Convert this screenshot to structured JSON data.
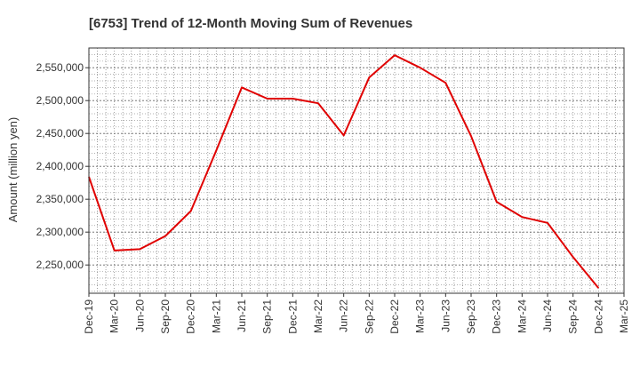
{
  "chart_data": {
    "type": "line",
    "title": "[6753]  Trend of 12-Month Moving Sum of Revenues",
    "xlabel": "",
    "ylabel": "Amount (million yen)",
    "ylim": [
      2207000,
      2580000
    ],
    "grid": true,
    "legend": "none",
    "y_ticks": [
      2250000,
      2300000,
      2350000,
      2400000,
      2450000,
      2500000,
      2550000
    ],
    "y_tick_labels": [
      "2,250,000",
      "2,300,000",
      "2,350,000",
      "2,400,000",
      "2,450,000",
      "2,500,000",
      "2,550,000"
    ],
    "categories": [
      "Dec-19",
      "Mar-20",
      "Jun-20",
      "Sep-20",
      "Dec-20",
      "Mar-21",
      "Jun-21",
      "Sep-21",
      "Dec-21",
      "Mar-22",
      "Jun-22",
      "Sep-22",
      "Dec-22",
      "Mar-23",
      "Jun-23",
      "Sep-23",
      "Dec-23",
      "Mar-24",
      "Jun-24",
      "Sep-24",
      "Dec-24",
      "Mar-25"
    ],
    "series": [
      {
        "name": "",
        "color": "#e00000",
        "values": [
          2384000,
          2272000,
          2274000,
          2294000,
          2332000,
          2424000,
          2520000,
          2503000,
          2503000,
          2496000,
          2447000,
          2535000,
          2569000,
          2550000,
          2527000,
          2446000,
          2346000,
          2323000,
          2314000,
          2262000,
          2215000,
          null
        ]
      }
    ]
  }
}
